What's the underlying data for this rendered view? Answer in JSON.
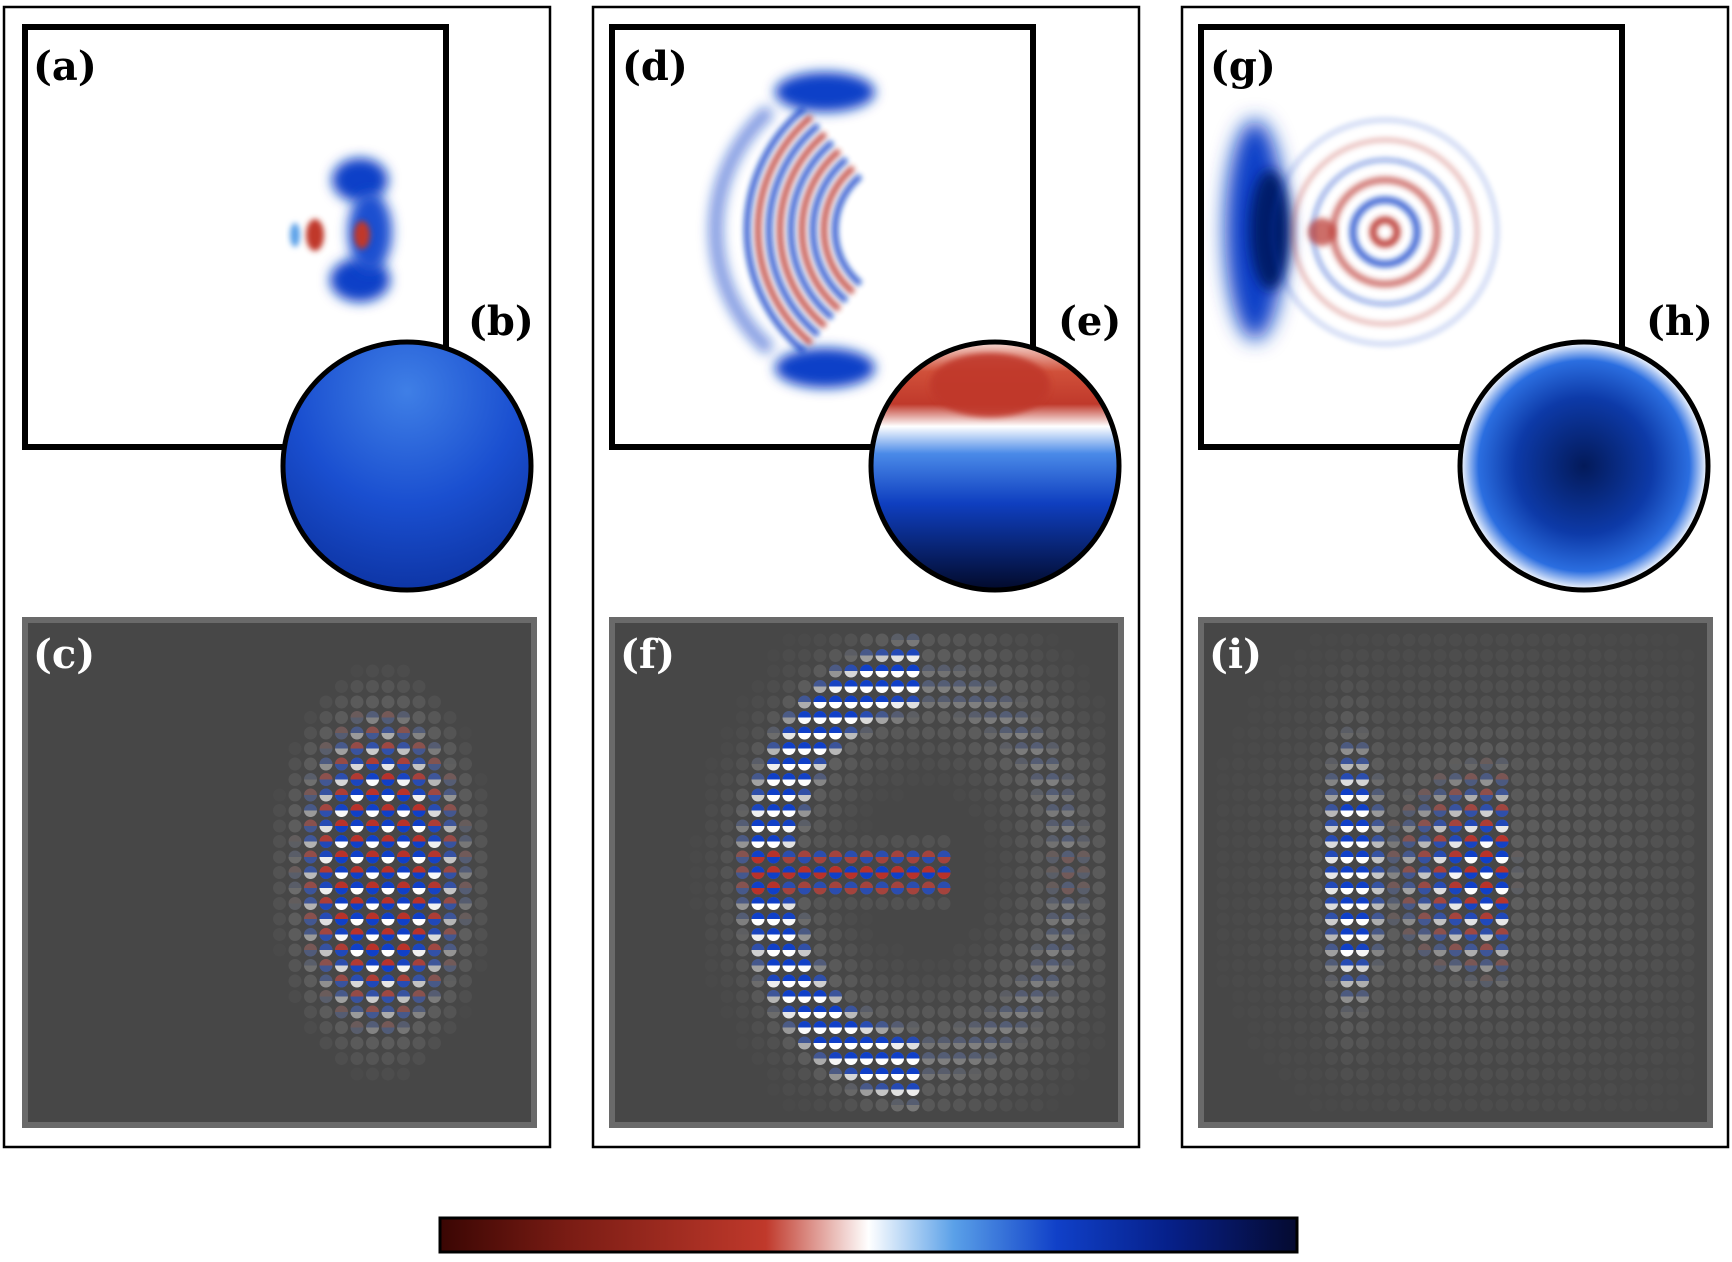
{
  "labels": {
    "a": "(a)",
    "b": "(b)",
    "c": "(c)",
    "d": "(d)",
    "e": "(e)",
    "f": "(f)",
    "g": "(g)",
    "h": "(h)",
    "i": "(i)"
  },
  "colors": {
    "frame": "#000000",
    "dark_panel_bg": "#474747",
    "dark_panel_border": "#6a6a6a",
    "dot": "#5a5a5a",
    "red": "#b8322a",
    "blue": "#1040c8",
    "dark_blue": "#041a6a",
    "colorbar_stops": [
      "#3a0603",
      "#7a1c14",
      "#c0392b",
      "#ffffff",
      "#5aa0e8",
      "#1040c8",
      "#06208a",
      "#050a30"
    ]
  },
  "columns": [
    {
      "id": "col-1",
      "field_label": "a",
      "sphere_label": "b",
      "lattice_label": "c"
    },
    {
      "id": "col-2",
      "field_label": "d",
      "sphere_label": "e",
      "lattice_label": "f"
    },
    {
      "id": "col-3",
      "field_label": "g",
      "sphere_label": "h",
      "lattice_label": "i"
    }
  ]
}
